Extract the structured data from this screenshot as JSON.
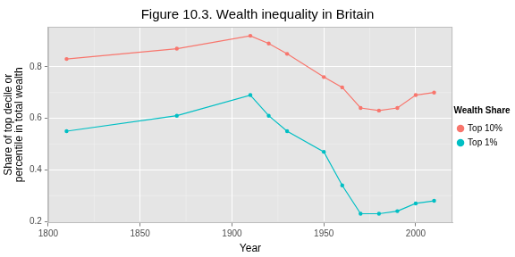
{
  "chart_data": {
    "type": "line",
    "title": "Figure 10.3. Wealth inequality in Britain",
    "xlabel": "Year",
    "ylabel": [
      "Share of top decile or",
      "percentile in total wealth"
    ],
    "legend_title": "Wealth Share",
    "x": [
      1810,
      1870,
      1910,
      1920,
      1930,
      1950,
      1960,
      1970,
      1980,
      1990,
      2000,
      2010
    ],
    "series": [
      {
        "name": "Top 10%",
        "color": "#F8766D",
        "marker": "circle",
        "line_style": "solid",
        "values": [
          0.83,
          0.87,
          0.92,
          0.89,
          0.85,
          0.76,
          0.72,
          0.64,
          0.63,
          0.64,
          0.69,
          0.7
        ]
      },
      {
        "name": "Top 1%",
        "color": "#00BFC4",
        "marker": "circle",
        "line_style": "solid",
        "values": [
          0.55,
          0.61,
          0.69,
          0.61,
          0.55,
          0.47,
          0.34,
          0.23,
          0.23,
          0.24,
          0.27,
          0.28
        ]
      }
    ],
    "xlim": [
      1800,
      2020
    ],
    "xticks": [
      1800,
      1850,
      1900,
      1950,
      2000
    ],
    "ylim": [
      0.195,
      0.955
    ],
    "yticks": [
      0.2,
      0.4,
      0.6,
      0.8
    ],
    "grid": true,
    "legend": "right"
  }
}
